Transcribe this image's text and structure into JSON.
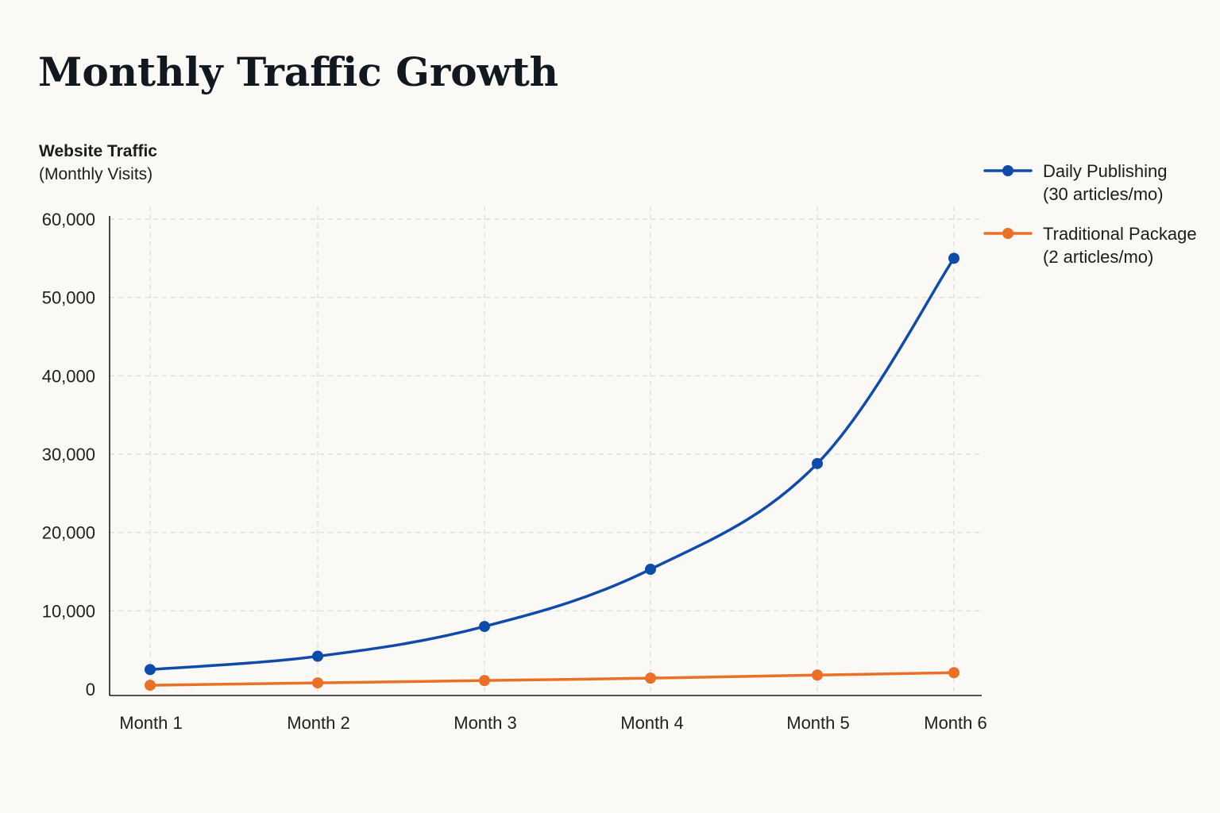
{
  "chart_data": {
    "type": "line",
    "title": "Monthly Traffic Growth",
    "ylabel": "Website Traffic",
    "ylabel_sub": "(Monthly Visits)",
    "xlabel": "",
    "categories": [
      "Month 1",
      "Month 2",
      "Month 3",
      "Month 4",
      "Month 5",
      "Month 6"
    ],
    "ylim": [
      0,
      60000
    ],
    "yticks": [
      0,
      10000,
      20000,
      30000,
      40000,
      50000,
      60000
    ],
    "ytick_labels": [
      "0",
      "10,000",
      "20,000",
      "30,000",
      "40,000",
      "50,000",
      "60,000"
    ],
    "grid": true,
    "legend_position": "top-right",
    "series": [
      {
        "name": "Daily Publishing",
        "name_sub": "(30 articles/mo)",
        "color": "#0f4bab",
        "values": [
          2500,
          4200,
          8000,
          15300,
          28800,
          55000
        ]
      },
      {
        "name": "Traditional Package",
        "name_sub": "(2 articles/mo)",
        "color": "#ea7026",
        "values": [
          500,
          800,
          1100,
          1400,
          1800,
          2100
        ]
      }
    ]
  }
}
